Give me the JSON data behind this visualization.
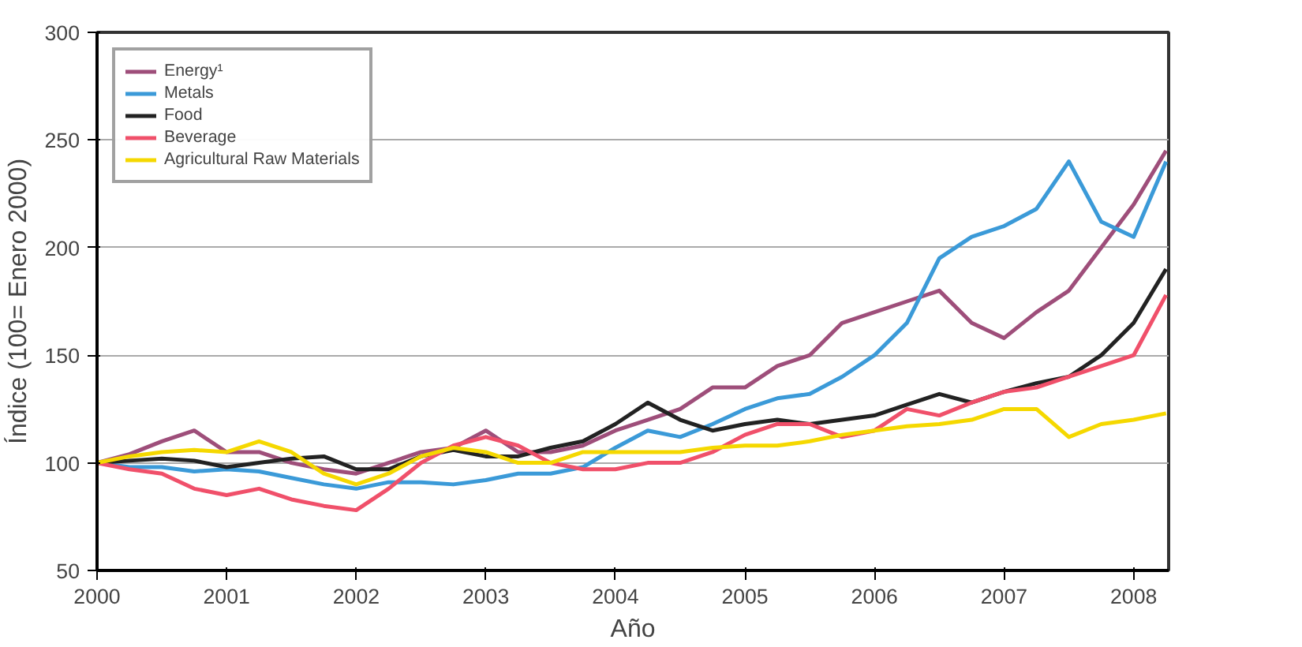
{
  "chart_data": {
    "type": "line",
    "xlabel": "Año",
    "ylabel": "Índice (100= Enero 2000)",
    "x": [
      2000,
      2000.25,
      2000.5,
      2000.75,
      2001,
      2001.25,
      2001.5,
      2001.75,
      2002,
      2002.25,
      2002.5,
      2002.75,
      2003,
      2003.25,
      2003.5,
      2003.75,
      2004,
      2004.25,
      2004.5,
      2004.75,
      2005,
      2005.25,
      2005.5,
      2005.75,
      2006,
      2006.25,
      2006.5,
      2006.75,
      2007,
      2007.25,
      2007.5,
      2007.75,
      2008,
      2008.25
    ],
    "series": [
      {
        "name": "Energy¹",
        "color": "#9e4e7a",
        "values": [
          100,
          104,
          110,
          115,
          105,
          105,
          100,
          97,
          95,
          100,
          105,
          107,
          115,
          105,
          105,
          108,
          115,
          120,
          125,
          135,
          135,
          145,
          150,
          165,
          170,
          175,
          180,
          165,
          158,
          170,
          180,
          200,
          220,
          245
        ]
      },
      {
        "name": "Metals",
        "color": "#3b9ad8",
        "values": [
          100,
          98,
          98,
          96,
          97,
          96,
          93,
          90,
          88,
          91,
          91,
          90,
          92,
          95,
          95,
          98,
          107,
          115,
          112,
          118,
          125,
          130,
          132,
          140,
          150,
          165,
          195,
          205,
          210,
          218,
          240,
          212,
          205,
          240
        ]
      },
      {
        "name": "Food",
        "color": "#222222",
        "values": [
          100,
          101,
          102,
          101,
          98,
          100,
          102,
          103,
          97,
          97,
          103,
          106,
          103,
          103,
          107,
          110,
          118,
          128,
          120,
          115,
          118,
          120,
          118,
          120,
          122,
          127,
          132,
          128,
          133,
          137,
          140,
          150,
          165,
          190
        ]
      },
      {
        "name": "Beverage",
        "color": "#f0506a",
        "values": [
          100,
          97,
          95,
          88,
          85,
          88,
          83,
          80,
          78,
          88,
          100,
          108,
          112,
          108,
          100,
          97,
          97,
          100,
          100,
          105,
          113,
          118,
          118,
          112,
          115,
          125,
          122,
          128,
          133,
          135,
          140,
          145,
          150,
          178
        ]
      },
      {
        "name": "Agricultural Raw Materials",
        "color": "#f5d800",
        "values": [
          100,
          103,
          105,
          106,
          105,
          110,
          105,
          95,
          90,
          95,
          103,
          107,
          105,
          100,
          100,
          105,
          105,
          105,
          105,
          107,
          108,
          108,
          110,
          113,
          115,
          117,
          118,
          120,
          125,
          125,
          112,
          118,
          120,
          123
        ]
      }
    ],
    "xlim": [
      2000,
      2008.27
    ],
    "xticks": [
      2000,
      2001,
      2002,
      2003,
      2004,
      2005,
      2006,
      2007,
      2008
    ],
    "ylim": [
      50,
      300
    ],
    "yticks": [
      50,
      100,
      150,
      200,
      250,
      300
    ],
    "grid": "y",
    "legend": "top left"
  }
}
